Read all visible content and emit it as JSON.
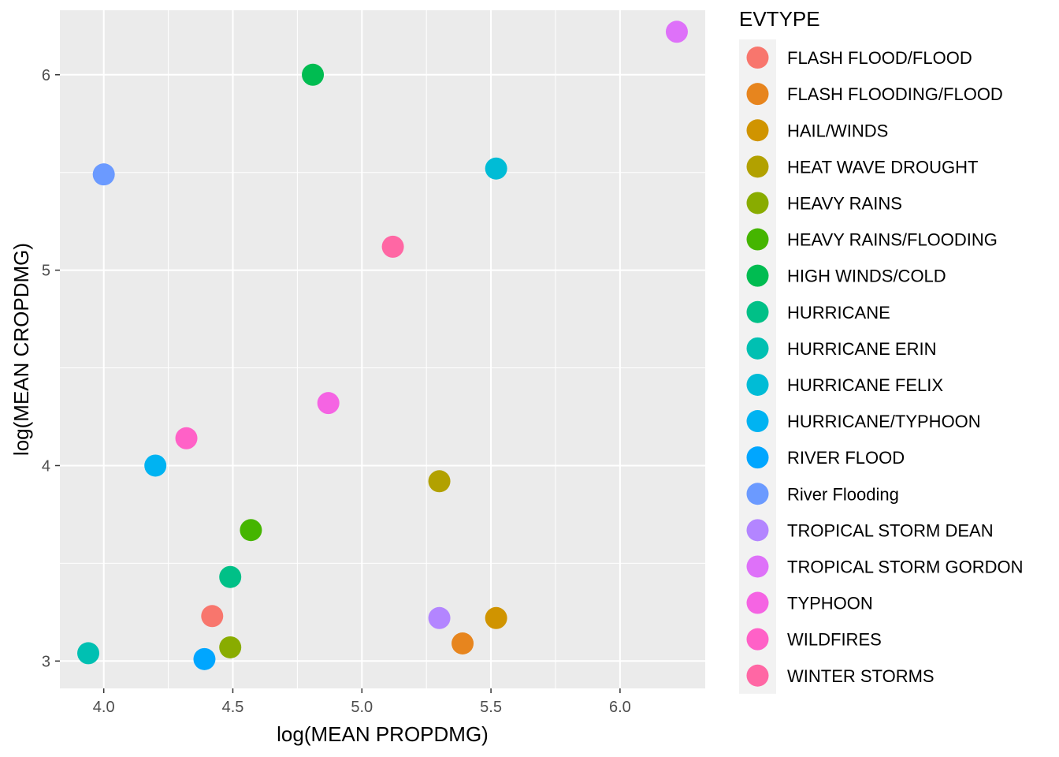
{
  "chart_data": {
    "type": "scatter",
    "xlabel": "log(MEAN PROPDMG)",
    "ylabel": "log(MEAN CROPDMG)",
    "xlim": [
      3.83,
      6.33
    ],
    "ylim": [
      2.86,
      6.33
    ],
    "x_ticks": [
      4.0,
      4.5,
      5.0,
      5.5,
      6.0
    ],
    "x_tick_labels": [
      "4.0",
      "4.5",
      "5.0",
      "5.5",
      "6.0"
    ],
    "y_ticks": [
      3,
      4,
      5,
      6
    ],
    "y_tick_labels": [
      "3",
      "4",
      "5",
      "6"
    ],
    "grid": true,
    "panel_background": "#ebebeb",
    "legend": {
      "title": "EVTYPE",
      "position": "right"
    },
    "series": [
      {
        "name": "FLASH FLOOD/FLOOD",
        "color": "#F8766D",
        "x": 4.42,
        "y": 3.23
      },
      {
        "name": "FLASH FLOODING/FLOOD",
        "color": "#E7851E",
        "x": 5.39,
        "y": 3.09
      },
      {
        "name": "HAIL/WINDS",
        "color": "#D09400",
        "x": 5.52,
        "y": 3.22
      },
      {
        "name": "HEAT WAVE DROUGHT",
        "color": "#B2A100",
        "x": 5.3,
        "y": 3.92
      },
      {
        "name": "HEAVY RAINS",
        "color": "#89AC00",
        "x": 4.49,
        "y": 3.07
      },
      {
        "name": "HEAVY RAINS/FLOODING",
        "color": "#45B500",
        "x": 4.57,
        "y": 3.67
      },
      {
        "name": "HIGH WINDS/COLD",
        "color": "#00BC51",
        "x": 4.81,
        "y": 6.0
      },
      {
        "name": "HURRICANE",
        "color": "#00C087",
        "x": 4.49,
        "y": 3.43
      },
      {
        "name": "HURRICANE ERIN",
        "color": "#00C0B2",
        "x": 3.94,
        "y": 3.04
      },
      {
        "name": "HURRICANE FELIX",
        "color": "#00BCD6",
        "x": 5.52,
        "y": 5.52
      },
      {
        "name": "HURRICANE/TYPHOON",
        "color": "#00B3F2",
        "x": 4.2,
        "y": 4.0
      },
      {
        "name": "RIVER FLOOD",
        "color": "#00A6FF",
        "x": 4.39,
        "y": 3.01
      },
      {
        "name": "River Flooding",
        "color": "#6B9AFF",
        "x": 4.0,
        "y": 5.49
      },
      {
        "name": "TROPICAL STORM DEAN",
        "color": "#B385FF",
        "x": 5.3,
        "y": 3.22
      },
      {
        "name": "TROPICAL STORM GORDON",
        "color": "#DE71F9",
        "x": 6.22,
        "y": 6.22
      },
      {
        "name": "TYPHOON",
        "color": "#F564E3",
        "x": 4.87,
        "y": 4.32
      },
      {
        "name": "WILDFIRES",
        "color": "#FF61C7",
        "x": 4.32,
        "y": 4.14
      },
      {
        "name": "WINTER STORMS",
        "color": "#FF67A4",
        "x": 5.12,
        "y": 5.12
      }
    ]
  }
}
